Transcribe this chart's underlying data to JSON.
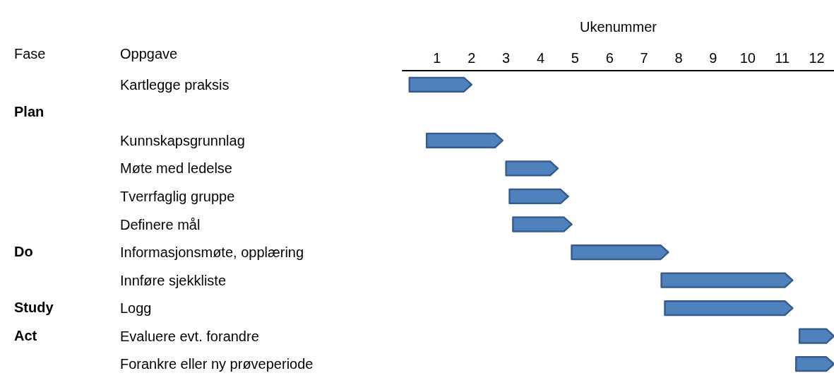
{
  "chart_data": {
    "type": "bar",
    "orientation": "horizontal",
    "xlabel": "Ukenummer",
    "ylabel": "Oppgave",
    "categories": [
      "Kartlegge praksis",
      null,
      "Kunnskapsgrunnlag",
      "Møte med ledelse",
      "Tverrfaglig gruppe",
      "Definere mål",
      "Informasjonsmøte, opplæring",
      "Innføre sjekkliste",
      "Logg",
      "Evaluere evt. forandre",
      "Forankre eller ny prøveperiode"
    ],
    "base": [
      -0.3,
      null,
      0.2,
      2.5,
      2.6,
      2.7,
      4.4,
      7.0,
      7.1,
      11.0,
      10.9
    ],
    "values": [
      1.8,
      null,
      2.2,
      1.5,
      1.7,
      1.7,
      2.8,
      3.8,
      3.7,
      1.0,
      1.1
    ],
    "color": "#4f81bd",
    "xlim": [
      -0.5,
      12
    ],
    "xticks": [
      {
        "value": 0.5,
        "label": "1"
      },
      {
        "value": 1.5,
        "label": "2"
      },
      {
        "value": 2.5,
        "label": "3"
      },
      {
        "value": 3.5,
        "label": "4"
      },
      {
        "value": 4.5,
        "label": "5"
      },
      {
        "value": 5.5,
        "label": "6"
      },
      {
        "value": 6.5,
        "label": "7"
      },
      {
        "value": 7.5,
        "label": "8"
      },
      {
        "value": 8.5,
        "label": "9"
      },
      {
        "value": 9.5,
        "label": "10"
      },
      {
        "value": 10.5,
        "label": "11"
      },
      {
        "value": 11.5,
        "label": "12"
      }
    ],
    "annotations": [
      "Fase",
      "Plan",
      "Do",
      "Study",
      "Act"
    ],
    "grid": false
  }
}
